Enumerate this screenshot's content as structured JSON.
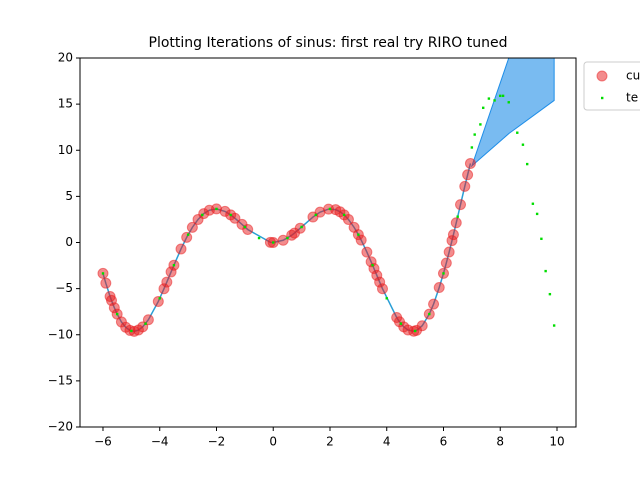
{
  "chart_data": {
    "type": "line",
    "title": "Plotting Iterations of sinus: first real try RIRO tuned",
    "xlim": [
      -6.81,
      10.67
    ],
    "ylim": [
      -20,
      20
    ],
    "xticks": [
      {
        "value": -6,
        "label": "−6"
      },
      {
        "value": -4,
        "label": "−4"
      },
      {
        "value": -2,
        "label": "−2"
      },
      0,
      2,
      4,
      6,
      8,
      10
    ],
    "yticks": [
      {
        "value": -20,
        "label": "−20"
      },
      {
        "value": -15,
        "label": "−15"
      },
      {
        "value": -10,
        "label": "−10"
      },
      {
        "value": -5,
        "label": "−5"
      },
      0,
      5,
      10,
      15,
      20
    ],
    "line_color": "#2a9fd6",
    "series": [
      {
        "name": "cu",
        "color": "#e8191c",
        "x": [
          -6,
          -5.9,
          -5.75,
          -5.7,
          -5.6,
          -5.5,
          -5.35,
          -5.2,
          -5.05,
          -4.9,
          -4.75,
          -4.6,
          -4.4,
          -4.05,
          -3.85,
          -3.75,
          -3.6,
          -3.5,
          -3.25,
          -3.05,
          -2.85,
          -2.65,
          -2.45,
          -2.25,
          -2.0,
          -1.7,
          -1.5,
          -1.35,
          -1.1,
          -0.9,
          -0.1,
          0.0,
          0.35,
          0.65,
          0.75,
          0.95,
          1.4,
          1.65,
          1.95,
          2.2,
          2.35,
          2.5,
          2.65,
          2.85,
          3.0,
          3.1,
          3.3,
          3.45,
          3.55,
          3.65,
          3.75,
          3.85,
          4.35,
          4.45,
          4.6,
          4.75,
          4.95,
          5.05,
          5.25,
          5.5,
          5.65,
          5.85,
          6.0,
          6.1,
          6.2,
          6.3,
          6.35,
          6.45,
          6.6,
          6.75,
          6.85,
          6.95
        ],
        "values": [
          -3.35,
          -4.41,
          -5.85,
          -6.28,
          -7.07,
          -7.76,
          -8.61,
          -9.19,
          -9.53,
          -9.63,
          -9.49,
          -9.14,
          -8.37,
          -6.39,
          -5.01,
          -4.29,
          -3.19,
          -2.46,
          -0.7,
          0.56,
          1.64,
          2.5,
          3.13,
          3.5,
          3.64,
          3.37,
          2.99,
          2.63,
          1.96,
          1.41,
          0.02,
          0,
          0.24,
          0.79,
          1.02,
          1.55,
          2.76,
          3.29,
          3.62,
          3.56,
          3.34,
          2.99,
          2.5,
          1.64,
          0.85,
          0.26,
          -1.04,
          -2.09,
          -2.82,
          -3.56,
          -4.29,
          -5.01,
          -8.13,
          -8.59,
          -9.14,
          -9.49,
          -9.62,
          -9.53,
          -9.02,
          -7.76,
          -6.68,
          -4.88,
          -3.35,
          -2.22,
          -1.03,
          0.21,
          0.85,
          2.14,
          4.11,
          6.08,
          7.34,
          8.57
        ]
      },
      {
        "name": "te",
        "color": "#00dd00",
        "x": [
          -6,
          -5.5,
          -5,
          -4.5,
          -4,
          -3.5,
          -3,
          -2.5,
          -2,
          -1.5,
          -1,
          -0.5,
          0,
          0.5,
          1,
          1.5,
          2,
          2.5,
          3,
          3.5,
          4,
          4.5,
          5,
          5.5,
          6,
          6.5,
          7.0,
          7.1,
          7.3,
          7.4,
          7.6,
          7.8,
          8.0,
          8.1,
          8.3,
          8.6,
          8.8,
          8.95,
          9.15,
          9.3,
          9.45,
          9.6,
          9.75,
          9.9
        ],
        "values": [
          -3.35,
          -7.76,
          -9.59,
          -8.8,
          -6.05,
          -2.46,
          0.85,
          2.99,
          3.64,
          2.99,
          1.68,
          0.48,
          0,
          0.48,
          1.68,
          2.99,
          3.64,
          2.99,
          0.85,
          -2.46,
          -6.05,
          -8.8,
          -9.59,
          -7.76,
          -3.35,
          2.8,
          10.3,
          11.7,
          12.8,
          14.6,
          15.6,
          15.4,
          15.9,
          15.9,
          15.2,
          11.9,
          10.6,
          8.5,
          4.2,
          3.1,
          0.4,
          -3.1,
          -5.6,
          -9.0
        ]
      }
    ],
    "band": {
      "color": "#1f8ee8",
      "x": [
        7.0,
        8.3,
        9.9
      ],
      "lower": [
        8.3,
        11.8,
        15.4
      ],
      "upper": [
        8.3,
        20,
        34.4
      ]
    }
  }
}
